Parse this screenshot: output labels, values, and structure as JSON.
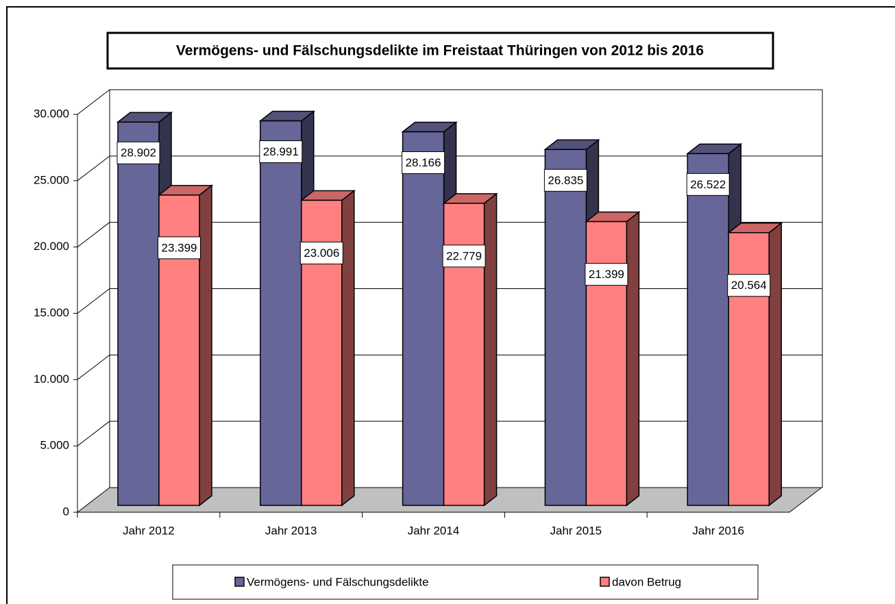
{
  "chart_data": {
    "type": "bar3d",
    "title": "Vermögens- und Fälschungsdelikte im Freistaat Thüringen von 2012 bis 2016",
    "categories": [
      "Jahr 2012",
      "Jahr 2013",
      "Jahr 2014",
      "Jahr 2015",
      "Jahr 2016"
    ],
    "series": [
      {
        "name": "Vermögens- und Fälschungsdelikte",
        "color": "#666699",
        "values": [
          28902,
          28991,
          28166,
          26835,
          26522
        ],
        "value_labels": [
          "28.902",
          "28.991",
          "28.166",
          "26.835",
          "26.522"
        ]
      },
      {
        "name": "davon Betrug",
        "color": "#ff8080",
        "values": [
          23399,
          23006,
          22779,
          21399,
          20564
        ],
        "value_labels": [
          "23.399",
          "23.006",
          "22.779",
          "21.399",
          "20.564"
        ]
      }
    ],
    "ylim": [
      0,
      30000
    ],
    "yticks": [
      0,
      {
        "value": 5000,
        "label": "5.000"
      },
      {
        "value": 10000,
        "label": "10.000"
      },
      {
        "value": 15000,
        "label": "15.000"
      },
      {
        "value": 20000,
        "label": "20.000"
      },
      {
        "value": 25000,
        "label": "25.000"
      },
      {
        "value": 30000,
        "label": "30.000"
      }
    ],
    "grid": true,
    "legend": "bottom"
  }
}
